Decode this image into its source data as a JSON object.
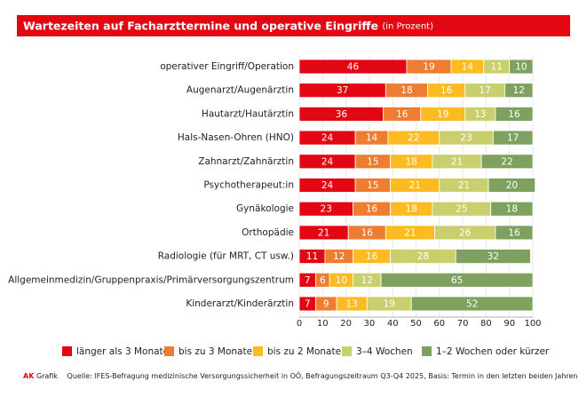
{
  "chart_data": {
    "type": "stacked-bar-horizontal",
    "title": "Wartezeiten auf Facharzttermine und operative Eingriffe",
    "subtitle": "(in Prozent)",
    "categories": [
      "operativer Eingriff/Operation",
      "Augenarzt/Augenärztin",
      "Hautarzt/Hautärztin",
      "Hals-Nasen-Ohren (HNO)",
      "Zahnarzt/Zahnärztin",
      "Psychotherapeut:in",
      "Gynäkologie",
      "Orthopädie",
      "Radiologie (für MRT, CT usw.)",
      "Allgemeinmedizin/Gruppenpraxis/Primärversorgungszentrum",
      "Kinderarzt/Kinderärztin"
    ],
    "series": [
      {
        "name": "länger als 3 Monate",
        "color": "#e30613",
        "values": [
          46,
          37,
          36,
          24,
          24,
          24,
          23,
          21,
          11,
          7,
          7
        ]
      },
      {
        "name": "bis zu 3 Monate",
        "color": "#ee7d31",
        "values": [
          19,
          18,
          16,
          14,
          15,
          15,
          16,
          16,
          12,
          6,
          9
        ]
      },
      {
        "name": "bis zu 2 Monate",
        "color": "#fbbb21",
        "values": [
          14,
          16,
          19,
          22,
          18,
          21,
          18,
          21,
          16,
          10,
          13
        ]
      },
      {
        "name": "3–4 Wochen",
        "color": "#c9cf6c",
        "values": [
          11,
          17,
          13,
          23,
          21,
          21,
          25,
          26,
          28,
          12,
          19
        ]
      },
      {
        "name": "1–2 Wochen oder kürzer",
        "color": "#7fa15f",
        "values": [
          10,
          12,
          16,
          17,
          22,
          20,
          18,
          16,
          32,
          65,
          52
        ]
      }
    ],
    "xlim": [
      0,
      100
    ],
    "xticks": [
      0,
      10,
      20,
      30,
      40,
      50,
      60,
      70,
      80,
      90,
      100
    ],
    "grid": true,
    "source_brand": "AK",
    "source_label": "Grafik",
    "source": "Quelle: IFES-Befragung medizinische Versorgungssicherheit in OÖ, Befragungszeitraum Q3-Q4 2025, Basis: Termin in den letzten beiden Jahren"
  }
}
